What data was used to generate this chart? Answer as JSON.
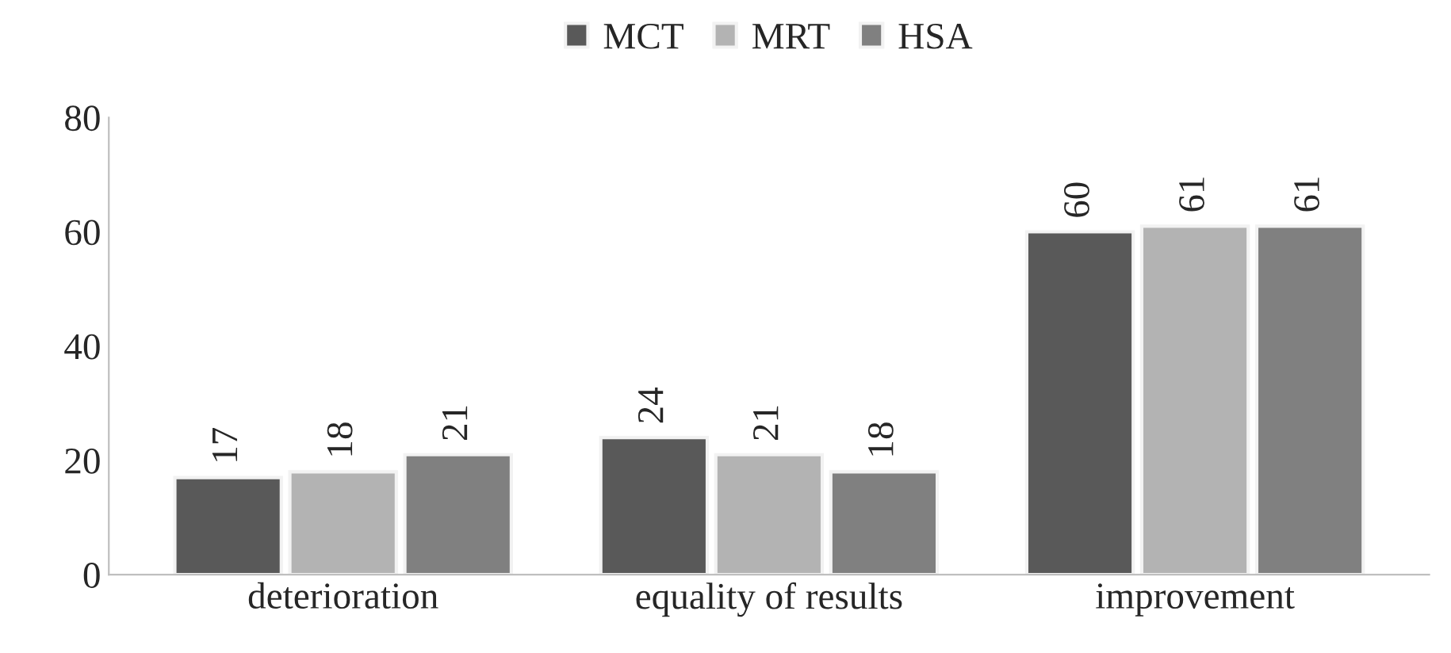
{
  "chart_data": {
    "type": "bar",
    "categories": [
      "deterioration",
      "equality of results",
      "improvement"
    ],
    "series": [
      {
        "name": "MCT",
        "color": "#595959",
        "values": [
          17,
          24,
          60
        ]
      },
      {
        "name": "MRT",
        "color": "#b3b3b3",
        "values": [
          18,
          21,
          61
        ]
      },
      {
        "name": "HSA",
        "color": "#808080",
        "values": [
          21,
          18,
          61
        ]
      }
    ],
    "ylim": [
      0,
      80
    ],
    "yticks": [
      0,
      20,
      40,
      60,
      80
    ],
    "data_labels": true,
    "legend": "top",
    "grid": false
  }
}
